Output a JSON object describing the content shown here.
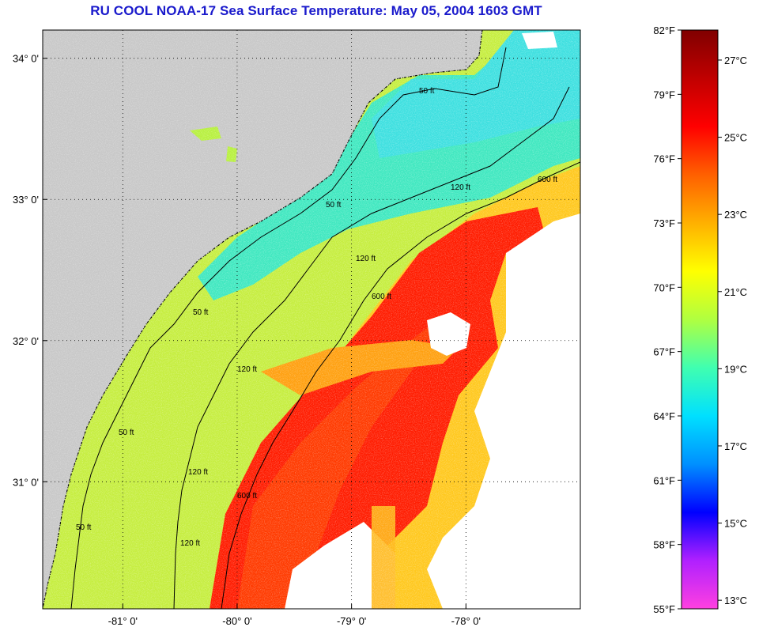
{
  "title": "RU COOL  NOAA-17  Sea Surface Temperature:  May 05, 2004 1603 GMT",
  "map": {
    "longitude_labels": [
      "-81° 0'",
      "-80° 0'",
      "-79° 0'",
      "-78° 0'"
    ],
    "latitude_labels": [
      "34° 0'",
      "33° 0'",
      "32° 0'",
      "31° 0'"
    ],
    "longitudes": [
      -81,
      -80,
      -79,
      -78
    ],
    "latitudes": [
      34,
      33,
      32,
      31
    ],
    "lon_range": [
      -81.7,
      -77.0
    ],
    "lat_range": [
      30.1,
      34.2
    ],
    "grid": true,
    "depth_contours": [
      "50 ft",
      "120 ft",
      "600 ft"
    ],
    "colors": {
      "land": "#c8c8c8",
      "cloud": "#ffffff",
      "gulf_stream": "#ff1a00",
      "shelf_water": "#c8f03c",
      "near_shore_cold": "#46e6c8",
      "contour": "#000000"
    }
  },
  "colorbar": {
    "fahrenheit_labels": [
      "82°F",
      "79°F",
      "76°F",
      "73°F",
      "70°F",
      "67°F",
      "64°F",
      "61°F",
      "58°F",
      "55°F"
    ],
    "fahrenheit_values": [
      82,
      79,
      76,
      73,
      70,
      67,
      64,
      61,
      58,
      55
    ],
    "celsius_labels": [
      "27°C",
      "25°C",
      "23°C",
      "21°C",
      "19°C",
      "17°C",
      "15°C",
      "13°C"
    ],
    "celsius_values": [
      27,
      25,
      23,
      21,
      19,
      17,
      15,
      13
    ],
    "range_f": [
      55,
      82
    ],
    "gradient": [
      "#ff40e0",
      "#b020ff",
      "#0000ff",
      "#0090ff",
      "#00e0ff",
      "#40ffb0",
      "#b0ff40",
      "#ffff00",
      "#ffb000",
      "#ff6000",
      "#ff0000",
      "#c00000",
      "#800000"
    ]
  }
}
